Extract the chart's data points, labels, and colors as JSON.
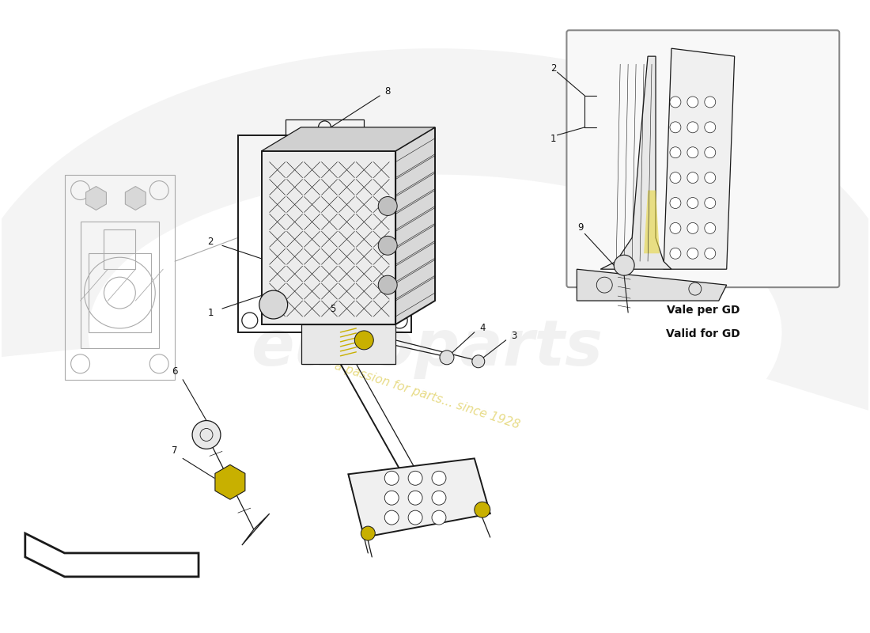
{
  "bg_color": "#ffffff",
  "line_color": "#1a1a1a",
  "light_gray": "#d8d8d8",
  "mid_gray": "#a0a0a0",
  "dark_gray": "#555555",
  "yellow_screw": "#c8b000",
  "yellow_light": "#e8d840",
  "inset_bg": "#f2f2f2",
  "inset_border": "#888888",
  "watermark_color": "#e0d060",
  "brand_color": "#d0d0d0",
  "note_line1": "Vale per GD",
  "note_line2": "Valid for GD",
  "watermark_text": "a passion for parts... since 1928",
  "fig_width": 11.0,
  "fig_height": 8.0,
  "dpi": 100
}
